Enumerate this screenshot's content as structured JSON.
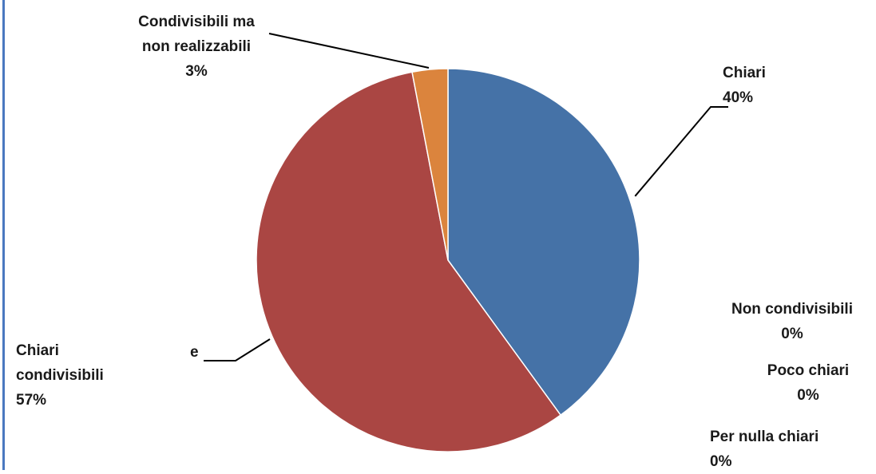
{
  "chart_data": {
    "type": "pie",
    "slices": [
      {
        "key": "chiari",
        "lines": [
          "Chiari"
        ],
        "pct": "40%",
        "value": 40,
        "color": "#4572a7"
      },
      {
        "key": "per-nulla-chiari",
        "lines": [
          "Per nulla chiari"
        ],
        "pct": "0%",
        "value": 0,
        "color": "#4572a7"
      },
      {
        "key": "poco-chiari",
        "lines": [
          "Poco chiari"
        ],
        "pct": "0%",
        "value": 0,
        "color": "#4572a7"
      },
      {
        "key": "non-condivisibili",
        "lines": [
          "Non condivisibili"
        ],
        "pct": "0%",
        "value": 0,
        "color": "#4572a7"
      },
      {
        "key": "chiari-e-condivisibili",
        "lines": [
          "Chiari",
          "condivisibili"
        ],
        "connector": "e",
        "pct": "57%",
        "value": 57,
        "color": "#aa4643"
      },
      {
        "key": "condivisibili-ma-non-realizzabili",
        "lines": [
          "Condivisibili ma",
          "non realizzabili"
        ],
        "pct": "3%",
        "value": 3,
        "color": "#db843d"
      }
    ]
  }
}
